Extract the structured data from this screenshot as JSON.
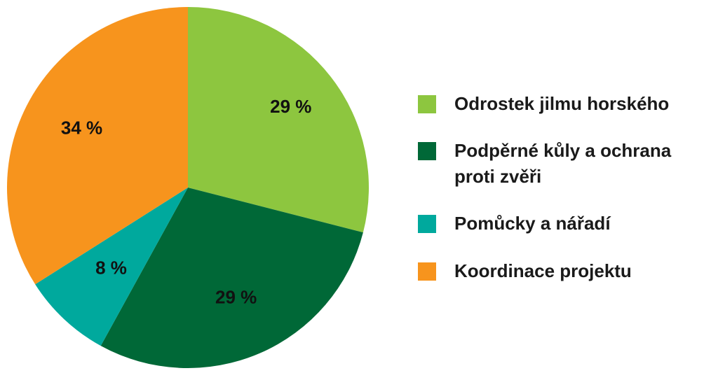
{
  "chart_data": {
    "type": "pie",
    "categories": [
      "Odrostek jilmu horského",
      "Podpěrné kůly a ochrana proti zvěři",
      "Pomůcky a nářadí",
      "Koordinace projektu"
    ],
    "values": [
      29,
      29,
      8,
      34
    ],
    "labels": [
      "29 %",
      "29 %",
      "8 %",
      "34 %"
    ],
    "colors": [
      "#8dc63f",
      "#006837",
      "#00a99d",
      "#f7941d"
    ],
    "start_angle_deg": 0,
    "direction": "clockwise",
    "legend_position": "right"
  }
}
